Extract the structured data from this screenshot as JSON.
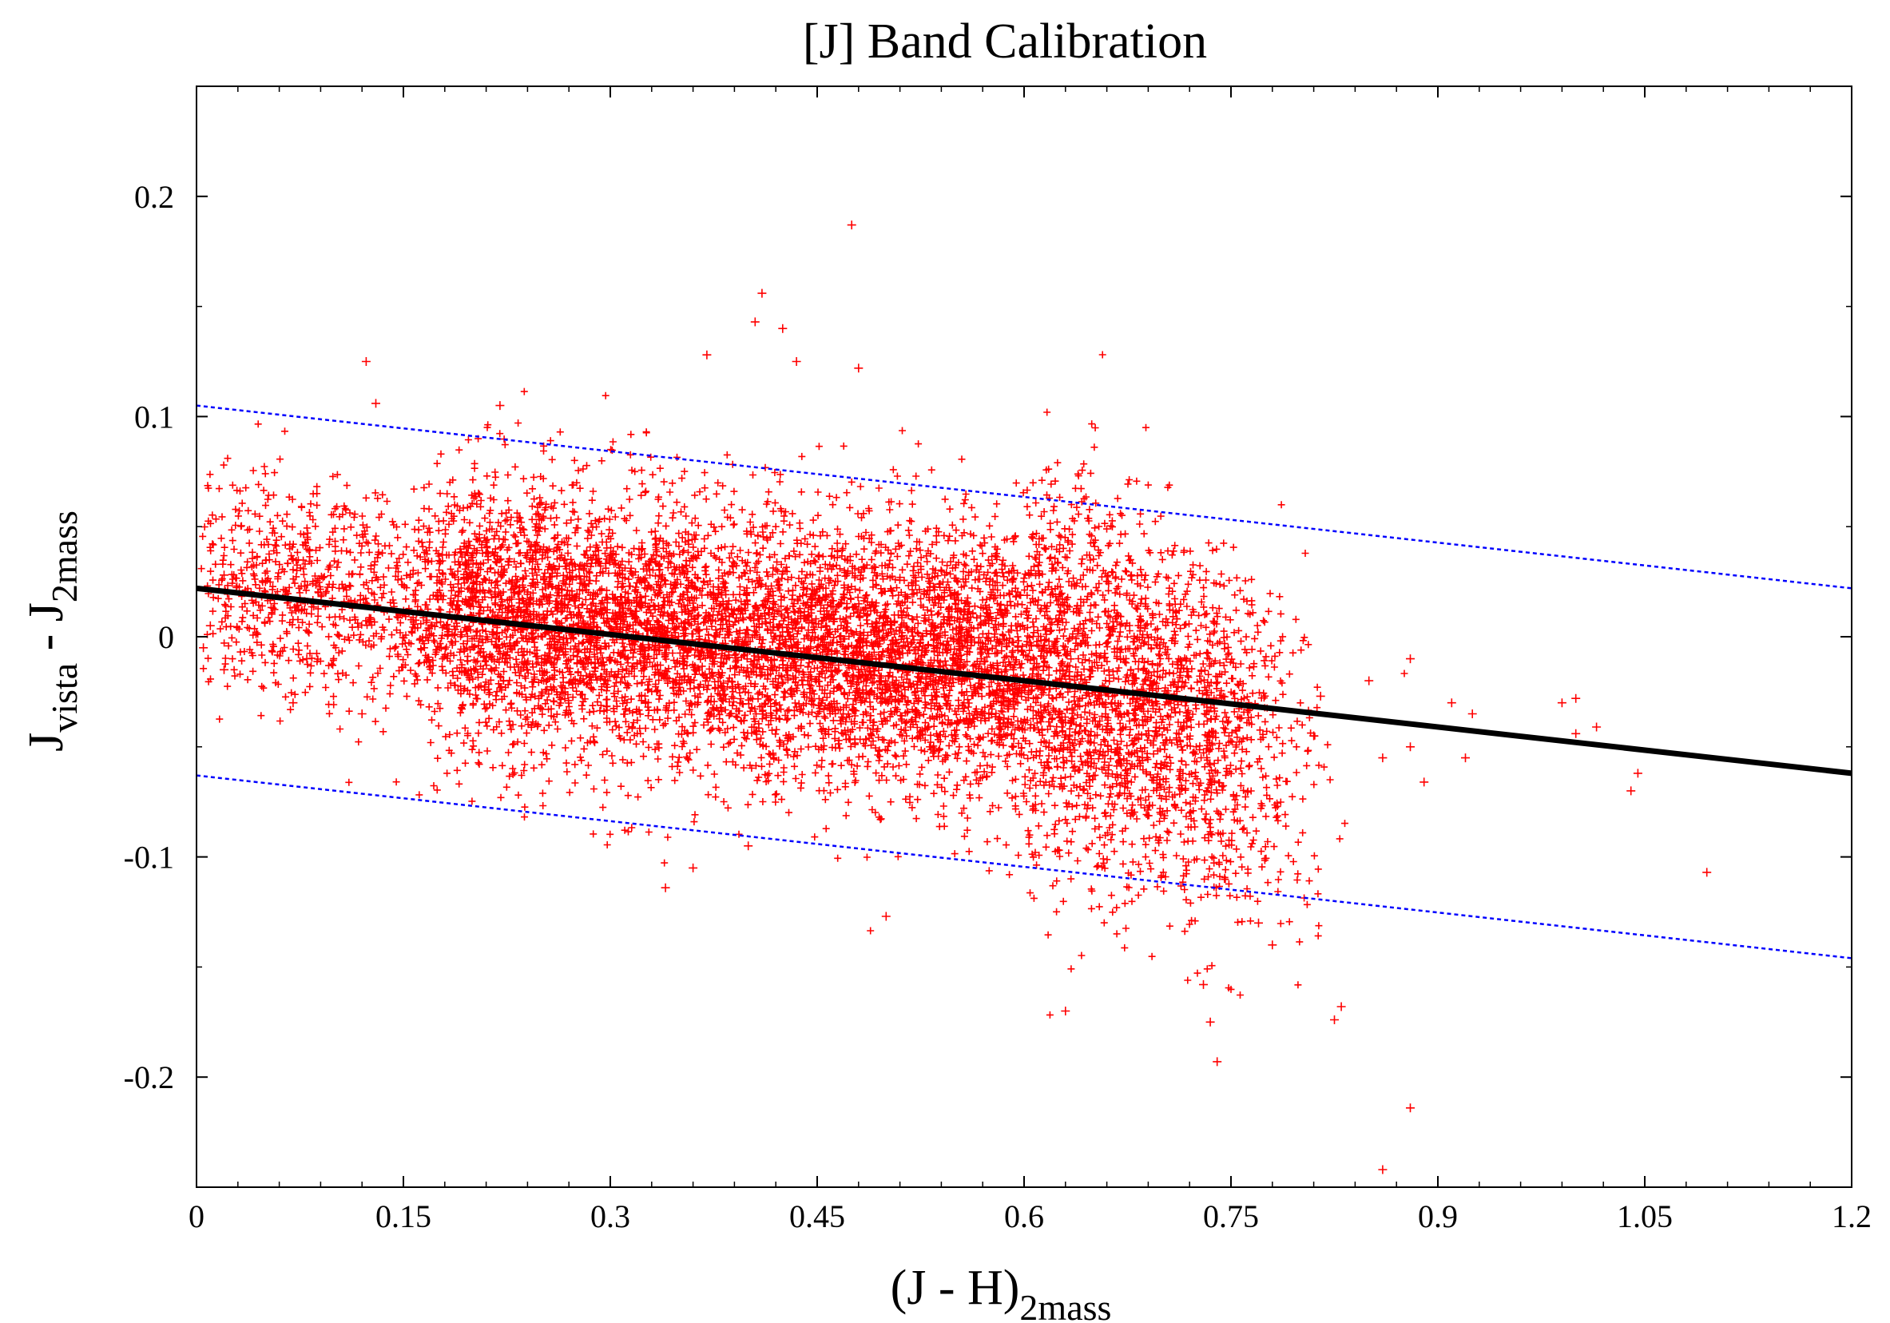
{
  "chart_data": {
    "type": "scatter",
    "title": "[J] Band Calibration",
    "xlabel": {
      "main": "(J - H)",
      "sub": "2mass"
    },
    "ylabel": {
      "part1": "J",
      "sub1": "vista",
      "sep": " - J",
      "sub2": "2mass"
    },
    "xlim": [
      0,
      1.2
    ],
    "ylim": [
      -0.25,
      0.25
    ],
    "x_ticks": [
      0,
      0.15,
      0.3,
      0.45,
      0.6,
      0.75,
      0.9,
      1.05,
      1.2
    ],
    "x_tick_labels": [
      "0",
      "0.15",
      "0.3",
      "0.45",
      "0.6",
      "0.75",
      "0.9",
      "1.05",
      "1.2"
    ],
    "y_ticks": [
      0.2,
      0.1,
      0,
      -0.1,
      -0.2
    ],
    "y_tick_labels": [
      "0.2",
      "0.1",
      "0",
      "-0.1",
      "-0.2"
    ],
    "grid": false,
    "series": [
      {
        "name": "calibration stars",
        "type": "scatter",
        "marker": "plus",
        "color": "#ff0000",
        "approx_count": 9000,
        "cloud_description": {
          "center_x": 0.45,
          "center_y": -0.005,
          "x_range_core": [
            0.18,
            0.73
          ],
          "y_spread": 0.03,
          "slope": -0.07
        },
        "outliers": [
          {
            "x": 0.475,
            "y": 0.187
          },
          {
            "x": 0.41,
            "y": 0.156
          },
          {
            "x": 0.405,
            "y": 0.143
          },
          {
            "x": 0.425,
            "y": 0.14
          },
          {
            "x": 0.37,
            "y": 0.128
          },
          {
            "x": 0.123,
            "y": 0.125
          },
          {
            "x": 0.48,
            "y": 0.122
          },
          {
            "x": 0.435,
            "y": 0.125
          },
          {
            "x": 0.13,
            "y": 0.106
          },
          {
            "x": 0.22,
            "y": 0.105
          },
          {
            "x": 0.34,
            "y": -0.114
          },
          {
            "x": 0.5,
            "y": -0.127
          },
          {
            "x": 0.63,
            "y": -0.17
          },
          {
            "x": 0.73,
            "y": -0.158
          },
          {
            "x": 0.74,
            "y": -0.193
          },
          {
            "x": 0.735,
            "y": -0.175
          },
          {
            "x": 0.83,
            "y": -0.168
          },
          {
            "x": 0.825,
            "y": -0.174
          },
          {
            "x": 0.88,
            "y": -0.214
          },
          {
            "x": 0.86,
            "y": -0.242
          },
          {
            "x": 1.095,
            "y": -0.107
          },
          {
            "x": 1.045,
            "y": -0.062
          },
          {
            "x": 1.04,
            "y": -0.07
          },
          {
            "x": 0.99,
            "y": -0.03
          },
          {
            "x": 1.0,
            "y": -0.028
          },
          {
            "x": 1.0,
            "y": -0.044
          },
          {
            "x": 1.015,
            "y": -0.041
          },
          {
            "x": 0.92,
            "y": -0.055
          },
          {
            "x": 0.91,
            "y": -0.03
          },
          {
            "x": 0.925,
            "y": -0.035
          },
          {
            "x": 0.88,
            "y": -0.01
          },
          {
            "x": 0.88,
            "y": -0.05
          },
          {
            "x": 0.85,
            "y": -0.02
          },
          {
            "x": 0.86,
            "y": -0.055
          },
          {
            "x": 0.815,
            "y": -0.027
          },
          {
            "x": 0.81,
            "y": -0.045
          },
          {
            "x": 0.89,
            "y": -0.066
          },
          {
            "x": 0.05,
            "y": 0.025
          },
          {
            "x": 0.02,
            "y": 0.028
          },
          {
            "x": 0.01,
            "y": 0.005
          },
          {
            "x": 0.005,
            "y": -0.005
          },
          {
            "x": 0.02,
            "y": -0.015
          },
          {
            "x": 0.08,
            "y": -0.01
          },
          {
            "x": 0.07,
            "y": -0.03
          },
          {
            "x": 0.12,
            "y": -0.035
          },
          {
            "x": 0.07,
            "y": 0.035
          },
          {
            "x": 0.78,
            "y": -0.14
          },
          {
            "x": 0.77,
            "y": -0.13
          },
          {
            "x": 0.4,
            "y": -0.095
          },
          {
            "x": 0.36,
            "y": -0.105
          }
        ]
      },
      {
        "name": "linear fit",
        "type": "line",
        "color": "#000000",
        "points": [
          {
            "x": 0,
            "y": 0.022
          },
          {
            "x": 1.2,
            "y": -0.062
          }
        ]
      },
      {
        "name": "upper bound",
        "type": "line",
        "style": "dotted",
        "color": "#0000ff",
        "points": [
          {
            "x": 0,
            "y": 0.105
          },
          {
            "x": 1.2,
            "y": 0.022
          }
        ]
      },
      {
        "name": "lower bound",
        "type": "line",
        "style": "dotted",
        "color": "#0000ff",
        "points": [
          {
            "x": 0,
            "y": -0.063
          },
          {
            "x": 1.2,
            "y": -0.146
          }
        ]
      }
    ]
  }
}
